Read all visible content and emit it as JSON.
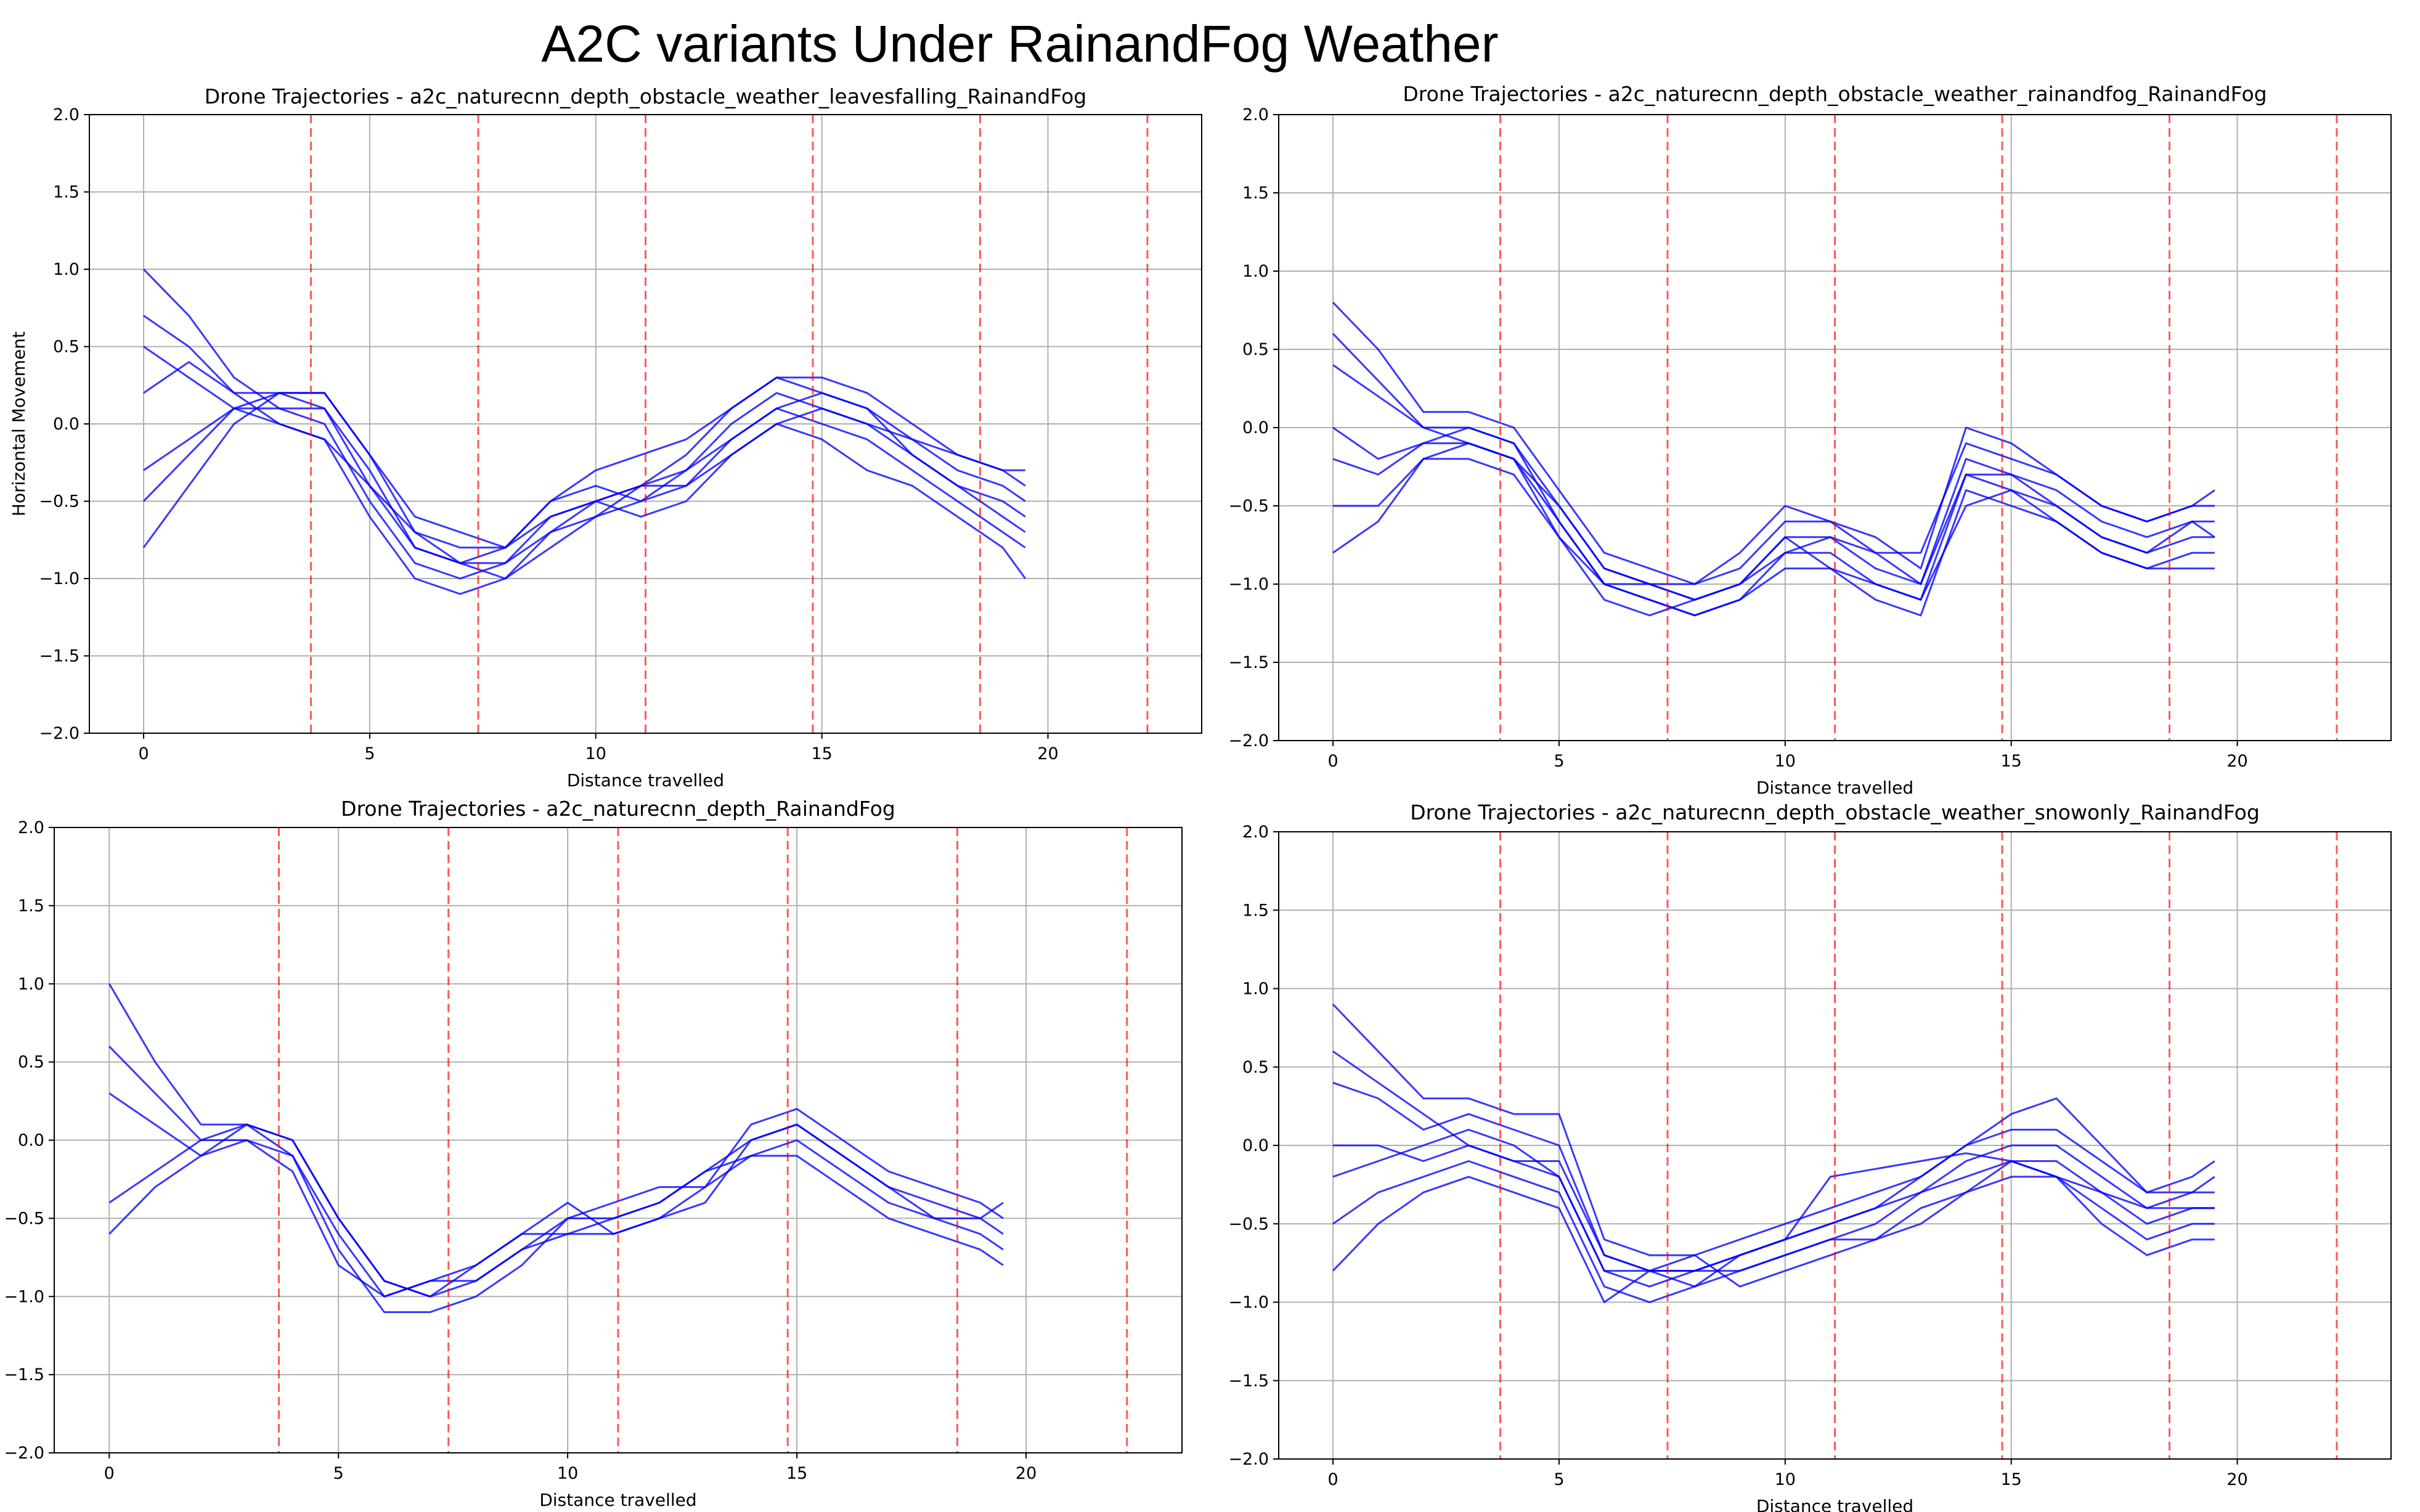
{
  "figure": {
    "title": "A2C variants Under  RainandFog Weather"
  },
  "chart_data": [
    {
      "type": "line",
      "title": "Drone Trajectories - a2c_naturecnn_depth_obstacle_weather_leavesfalling_RainandFog",
      "xlabel": "Distance travelled",
      "ylabel": "Horizontal Movement",
      "xlim": [
        -1.2,
        23.4
      ],
      "ylim": [
        -2.0,
        2.0
      ],
      "xticks": [
        0,
        5,
        10,
        15,
        20
      ],
      "yticks": [
        -2.0,
        -1.5,
        -1.0,
        -0.5,
        0.0,
        0.5,
        1.0,
        1.5,
        2.0
      ],
      "grid": true,
      "checkpoint_x": [
        3.7,
        7.4,
        11.1,
        14.8,
        18.5,
        22.2
      ],
      "series_color": "#0000ff",
      "checkpoint_color": "#ff0000",
      "x": [
        0,
        1,
        2,
        3,
        4,
        5,
        6,
        7,
        8,
        9,
        10,
        11,
        12,
        13,
        14,
        15,
        16,
        17,
        18,
        19,
        19.5
      ],
      "series": [
        {
          "values": [
            1.0,
            0.7,
            0.3,
            0.1,
            0.1,
            -0.3,
            -0.8,
            -0.9,
            -0.9,
            -0.6,
            -0.5,
            -0.4,
            -0.3,
            0.0,
            0.2,
            0.1,
            0.0,
            -0.1,
            -0.3,
            -0.4,
            -0.5
          ]
        },
        {
          "values": [
            0.5,
            0.3,
            0.1,
            0.2,
            0.1,
            -0.4,
            -0.7,
            -0.8,
            -0.8,
            -0.5,
            -0.4,
            -0.5,
            -0.4,
            -0.1,
            0.1,
            0.2,
            0.1,
            -0.2,
            -0.4,
            -0.5,
            -0.6
          ]
        },
        {
          "values": [
            -0.3,
            -0.1,
            0.1,
            0.1,
            0.0,
            -0.5,
            -0.9,
            -1.0,
            -0.9,
            -0.7,
            -0.6,
            -0.5,
            -0.3,
            -0.1,
            0.1,
            0.0,
            -0.1,
            -0.3,
            -0.5,
            -0.7,
            -0.8
          ]
        },
        {
          "values": [
            -0.8,
            -0.4,
            0.0,
            0.2,
            0.2,
            -0.2,
            -0.7,
            -0.9,
            -1.0,
            -0.8,
            -0.6,
            -0.4,
            -0.2,
            0.1,
            0.3,
            0.3,
            0.2,
            0.0,
            -0.2,
            -0.3,
            -0.4
          ]
        },
        {
          "values": [
            0.2,
            0.4,
            0.2,
            0.0,
            -0.1,
            -0.6,
            -1.0,
            -1.1,
            -1.0,
            -0.7,
            -0.5,
            -0.6,
            -0.5,
            -0.2,
            0.0,
            -0.1,
            -0.3,
            -0.4,
            -0.6,
            -0.8,
            -1.0
          ]
        },
        {
          "values": [
            0.7,
            0.5,
            0.2,
            0.2,
            0.2,
            -0.2,
            -0.6,
            -0.7,
            -0.8,
            -0.5,
            -0.3,
            -0.2,
            -0.1,
            0.1,
            0.3,
            0.2,
            0.1,
            -0.1,
            -0.2,
            -0.3,
            -0.3
          ]
        },
        {
          "values": [
            -0.5,
            -0.2,
            0.1,
            0.0,
            -0.1,
            -0.4,
            -0.8,
            -0.9,
            -0.8,
            -0.6,
            -0.5,
            -0.4,
            -0.4,
            -0.2,
            0.0,
            0.1,
            0.0,
            -0.2,
            -0.4,
            -0.6,
            -0.7
          ]
        }
      ]
    },
    {
      "type": "line",
      "title": "Drone Trajectories - a2c_naturecnn_depth_obstacle_weather_rainandfog_RainandFog",
      "xlabel": "Distance travelled",
      "ylabel": "",
      "xlim": [
        -1.2,
        23.4
      ],
      "ylim": [
        -2.0,
        2.0
      ],
      "xticks": [
        0,
        5,
        10,
        15,
        20
      ],
      "yticks": [
        -2.0,
        -1.5,
        -1.0,
        -0.5,
        0.0,
        0.5,
        1.0,
        1.5,
        2.0
      ],
      "grid": true,
      "checkpoint_x": [
        3.7,
        7.4,
        11.1,
        14.8,
        18.5,
        22.2
      ],
      "series_color": "#0000ff",
      "checkpoint_color": "#ff0000",
      "x": [
        0,
        1,
        2,
        3,
        4,
        5,
        6,
        7,
        8,
        9,
        10,
        11,
        12,
        13,
        14,
        15,
        16,
        17,
        18,
        19,
        19.5
      ],
      "series": [
        {
          "values": [
            0.8,
            0.5,
            0.1,
            0.1,
            0.0,
            -0.4,
            -0.8,
            -0.9,
            -1.0,
            -0.9,
            -0.6,
            -0.6,
            -0.8,
            -0.8,
            -0.1,
            -0.2,
            -0.3,
            -0.5,
            -0.6,
            -0.5,
            -0.4
          ]
        },
        {
          "values": [
            0.4,
            0.2,
            0.0,
            0.0,
            -0.1,
            -0.5,
            -0.9,
            -1.0,
            -1.1,
            -1.0,
            -0.7,
            -0.7,
            -0.9,
            -1.0,
            -0.2,
            -0.3,
            -0.4,
            -0.6,
            -0.7,
            -0.6,
            -0.6
          ]
        },
        {
          "values": [
            -0.2,
            -0.3,
            -0.1,
            -0.1,
            -0.2,
            -0.6,
            -1.0,
            -1.1,
            -1.2,
            -1.1,
            -0.8,
            -0.8,
            -1.0,
            -1.1,
            -0.3,
            -0.4,
            -0.5,
            -0.7,
            -0.8,
            -0.7,
            -0.7
          ]
        },
        {
          "values": [
            -0.8,
            -0.6,
            -0.2,
            -0.2,
            -0.3,
            -0.7,
            -1.1,
            -1.2,
            -1.1,
            -1.0,
            -0.7,
            -0.9,
            -1.1,
            -1.2,
            -0.4,
            -0.5,
            -0.6,
            -0.8,
            -0.9,
            -0.8,
            -0.8
          ]
        },
        {
          "values": [
            0.6,
            0.3,
            0.0,
            -0.1,
            -0.2,
            -0.5,
            -0.9,
            -1.0,
            -1.0,
            -0.8,
            -0.5,
            -0.6,
            -0.7,
            -0.9,
            0.0,
            -0.1,
            -0.3,
            -0.5,
            -0.6,
            -0.5,
            -0.5
          ]
        },
        {
          "values": [
            0.0,
            -0.2,
            -0.1,
            0.0,
            -0.1,
            -0.6,
            -1.0,
            -1.0,
            -1.1,
            -1.0,
            -0.8,
            -0.7,
            -0.8,
            -1.0,
            -0.3,
            -0.3,
            -0.5,
            -0.7,
            -0.8,
            -0.6,
            -0.7
          ]
        },
        {
          "values": [
            -0.5,
            -0.5,
            -0.2,
            -0.1,
            -0.2,
            -0.7,
            -1.0,
            -1.1,
            -1.2,
            -1.1,
            -0.9,
            -0.9,
            -1.0,
            -1.1,
            -0.5,
            -0.4,
            -0.6,
            -0.8,
            -0.9,
            -0.9,
            -0.9
          ]
        }
      ]
    },
    {
      "type": "line",
      "title": "Drone Trajectories - a2c_naturecnn_depth_RainandFog",
      "xlabel": "Distance travelled",
      "ylabel": "",
      "xlim": [
        -1.2,
        23.4
      ],
      "ylim": [
        -2.0,
        2.0
      ],
      "xticks": [
        0,
        5,
        10,
        15,
        20
      ],
      "yticks": [
        -2.0,
        -1.5,
        -1.0,
        -0.5,
        0.0,
        0.5,
        1.0,
        1.5,
        2.0
      ],
      "grid": true,
      "checkpoint_x": [
        3.7,
        7.4,
        11.1,
        14.8,
        18.5,
        22.2
      ],
      "series_color": "#0000ff",
      "checkpoint_color": "#ff0000",
      "x": [
        0,
        1,
        2,
        3,
        4,
        5,
        6,
        7,
        8,
        9,
        10,
        11,
        12,
        13,
        14,
        15,
        16,
        17,
        18,
        19,
        19.5
      ],
      "series": [
        {
          "values": [
            1.0,
            0.5,
            0.1,
            0.1,
            0.0,
            -0.5,
            -0.9,
            -1.0,
            -0.9,
            -0.7,
            -0.5,
            -0.5,
            -0.4,
            -0.2,
            0.0,
            0.1,
            -0.1,
            -0.3,
            -0.4,
            -0.5,
            -0.6
          ]
        },
        {
          "values": [
            0.6,
            0.3,
            0.0,
            0.0,
            -0.1,
            -0.6,
            -1.0,
            -0.9,
            -0.8,
            -0.6,
            -0.6,
            -0.6,
            -0.5,
            -0.3,
            0.1,
            0.2,
            0.0,
            -0.2,
            -0.3,
            -0.4,
            -0.5
          ]
        },
        {
          "values": [
            -0.4,
            -0.2,
            0.0,
            0.1,
            -0.1,
            -0.7,
            -1.1,
            -1.1,
            -1.0,
            -0.8,
            -0.5,
            -0.4,
            -0.3,
            -0.3,
            -0.1,
            0.0,
            -0.2,
            -0.4,
            -0.5,
            -0.6,
            -0.7
          ]
        },
        {
          "values": [
            -0.6,
            -0.3,
            -0.1,
            0.0,
            -0.2,
            -0.8,
            -1.0,
            -0.9,
            -0.9,
            -0.7,
            -0.6,
            -0.5,
            -0.4,
            -0.2,
            -0.1,
            -0.1,
            -0.3,
            -0.5,
            -0.6,
            -0.7,
            -0.8
          ]
        },
        {
          "values": [
            0.3,
            0.1,
            -0.1,
            0.1,
            0.0,
            -0.5,
            -0.9,
            -1.0,
            -0.8,
            -0.6,
            -0.4,
            -0.6,
            -0.5,
            -0.4,
            0.0,
            0.1,
            -0.1,
            -0.3,
            -0.5,
            -0.5,
            -0.4
          ]
        }
      ]
    },
    {
      "type": "line",
      "title": "Drone Trajectories - a2c_naturecnn_depth_obstacle_weather_snowonly_RainandFog",
      "xlabel": "Distance travelled",
      "ylabel": "",
      "xlim": [
        -1.2,
        23.4
      ],
      "ylim": [
        -2.0,
        2.0
      ],
      "xticks": [
        0,
        5,
        10,
        15,
        20
      ],
      "yticks": [
        -2.0,
        -1.5,
        -1.0,
        -0.5,
        0.0,
        0.5,
        1.0,
        1.5,
        2.0
      ],
      "grid": true,
      "checkpoint_x": [
        3.7,
        7.4,
        11.1,
        14.8,
        18.5,
        22.2
      ],
      "series_color": "#0000ff",
      "checkpoint_color": "#ff0000",
      "x": [
        0,
        1,
        2,
        3,
        4,
        5,
        6,
        7,
        8,
        9,
        10,
        11,
        12,
        13,
        14,
        15,
        16,
        17,
        18,
        19,
        19.5
      ],
      "series": [
        {
          "values": [
            0.9,
            0.6,
            0.3,
            0.3,
            0.2,
            0.2,
            -0.6,
            -0.7,
            -0.7,
            -0.6,
            -0.5,
            -0.4,
            -0.3,
            -0.2,
            0.0,
            0.2,
            0.3,
            0.0,
            -0.3,
            -0.2,
            -0.1
          ]
        },
        {
          "values": [
            0.4,
            0.3,
            0.1,
            0.2,
            0.1,
            0.0,
            -0.7,
            -0.8,
            -0.8,
            -0.7,
            -0.6,
            -0.5,
            -0.4,
            -0.3,
            -0.1,
            0.0,
            0.0,
            -0.2,
            -0.4,
            -0.3,
            -0.3
          ]
        },
        {
          "values": [
            0.0,
            0.0,
            -0.1,
            0.0,
            -0.1,
            -0.2,
            -0.8,
            -0.9,
            -0.8,
            -0.8,
            -0.7,
            -0.6,
            -0.5,
            -0.3,
            -0.2,
            -0.1,
            -0.1,
            -0.3,
            -0.5,
            -0.4,
            -0.4
          ]
        },
        {
          "values": [
            -0.5,
            -0.3,
            -0.2,
            -0.1,
            -0.2,
            -0.3,
            -0.9,
            -1.0,
            -0.9,
            -0.8,
            -0.7,
            -0.6,
            -0.6,
            -0.4,
            -0.3,
            -0.2,
            -0.2,
            -0.4,
            -0.6,
            -0.5,
            -0.5
          ]
        },
        {
          "values": [
            -0.8,
            -0.5,
            -0.3,
            -0.2,
            -0.3,
            -0.4,
            -1.0,
            -0.8,
            -0.7,
            -0.9,
            -0.8,
            -0.7,
            -0.6,
            -0.5,
            -0.3,
            -0.1,
            -0.2,
            -0.5,
            -0.7,
            -0.6,
            -0.6
          ]
        },
        {
          "values": [
            0.6,
            0.4,
            0.2,
            0.0,
            -0.1,
            -0.1,
            -0.7,
            -0.8,
            -0.8,
            -0.7,
            -0.6,
            -0.5,
            -0.4,
            -0.2,
            0.0,
            0.1,
            0.1,
            -0.1,
            -0.3,
            -0.3,
            -0.2
          ]
        },
        {
          "values": [
            -0.2,
            -0.1,
            0.0,
            0.1,
            0.0,
            -0.2,
            -0.8,
            -0.8,
            -0.9,
            -0.7,
            -0.6,
            -0.2,
            -0.15,
            -0.1,
            -0.05,
            -0.1,
            -0.2,
            -0.3,
            -0.4,
            -0.4,
            -0.4
          ]
        }
      ]
    }
  ]
}
